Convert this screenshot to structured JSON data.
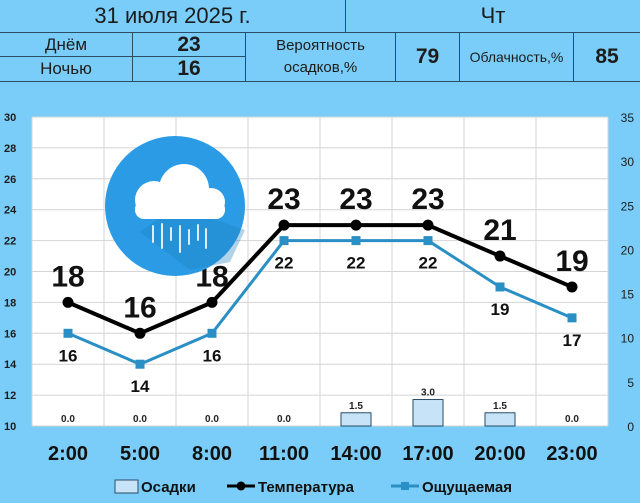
{
  "header": {
    "date": "31 июля 2025 г.",
    "weekday": "Чт",
    "day_label": "Днём",
    "day_value": "23",
    "night_label": "Ночью",
    "night_value": "16",
    "precip_prob_label_1": "Вероятность",
    "precip_prob_label_2": "осадков,%",
    "precip_prob_value": "79",
    "cloud_label": "Облачность,%",
    "cloud_value": "85"
  },
  "weather_icon": "rain-cloud-icon",
  "colors": {
    "background": "#79cdf8",
    "plot_background": "#ffffff",
    "temperature_line": "#000000",
    "feels_line": "#2a8fc4",
    "precip_bar": "#c7e3f7"
  },
  "chart_data": {
    "type": "line",
    "categories": [
      "2:00",
      "5:00",
      "8:00",
      "11:00",
      "14:00",
      "17:00",
      "20:00",
      "23:00"
    ],
    "series": [
      {
        "name": "Температура",
        "axis": "left",
        "values": [
          18,
          16,
          18,
          23,
          23,
          23,
          21,
          19
        ]
      },
      {
        "name": "Ощущаемая",
        "axis": "left",
        "values": [
          16,
          14,
          16,
          22,
          22,
          22,
          19,
          17
        ]
      },
      {
        "name": "Осадки",
        "axis": "right",
        "type": "bar",
        "values": [
          0.0,
          0.0,
          0.0,
          0.0,
          1.5,
          3.0,
          1.5,
          0.0
        ]
      }
    ],
    "precip_labels": [
      "0.0",
      "0.0",
      "0.0",
      "0.0",
      "1.5",
      "3.0",
      "1.5",
      "0.0"
    ],
    "y_left": {
      "min": 10,
      "max": 30,
      "ticks": [
        10,
        12,
        14,
        16,
        18,
        20,
        22,
        24,
        26,
        28,
        30
      ]
    },
    "y_right": {
      "min": 0,
      "max": 35,
      "ticks": [
        0,
        5,
        10,
        15,
        20,
        25,
        30,
        35
      ]
    },
    "grid": true,
    "legend_position": "bottom"
  }
}
